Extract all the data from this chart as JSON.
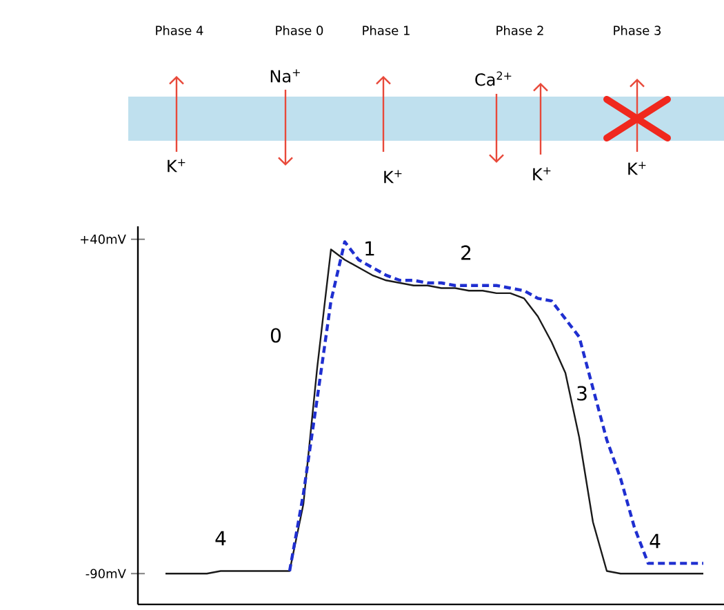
{
  "chart_data": {
    "type": "line",
    "categories": [
      null,
      null,
      null,
      null,
      null,
      null,
      null,
      null,
      null,
      null,
      null,
      null,
      null,
      null,
      null,
      null,
      null,
      null,
      null,
      null,
      null,
      null,
      null,
      null,
      null,
      null,
      null,
      null,
      null,
      null,
      null,
      null,
      null,
      null,
      null,
      null,
      null,
      null,
      null,
      null
    ],
    "series": [
      {
        "color": "#1a1a1a",
        "line_style": "solid",
        "values": [
          -90,
          -90,
          -90,
          -90,
          -89,
          -89,
          -89,
          -89,
          -89,
          -89,
          -63,
          -10,
          36,
          32,
          29,
          26,
          24,
          23,
          22,
          22,
          21,
          21,
          20,
          20,
          19,
          19,
          17,
          10,
          0,
          -12,
          -37,
          -70,
          -89,
          -90,
          -90,
          -90,
          -90,
          -90,
          -90,
          -90
        ]
      },
      {
        "color": "#1f2fd0",
        "line_style": "dashed",
        "values": [
          null,
          null,
          null,
          null,
          null,
          null,
          null,
          null,
          null,
          -89,
          -59,
          -22,
          16,
          39,
          32,
          29,
          26,
          24,
          24,
          23,
          23,
          22,
          22,
          22,
          22,
          21,
          20,
          17,
          16,
          9,
          2,
          -18,
          -38,
          -53,
          -72,
          -86,
          -86,
          -86,
          -86,
          -86
        ]
      }
    ],
    "ylim": [
      -102,
      45
    ],
    "yticks": [
      {
        "value": 40,
        "label": "+40mV"
      },
      {
        "value": -90,
        "label": "-90mV"
      }
    ],
    "tick_labels": "y",
    "marker": "none",
    "annotations": [
      "Phase 4",
      "Phase 0",
      "Phase 1",
      "Phase 2",
      "Phase 3",
      "Na$^{+}$",
      "K$^{+}$",
      "K$^{+}$",
      "Ca$^{2+}$",
      "K$^{+}$",
      "K$^{+}$",
      "4",
      "0",
      "1",
      "2",
      "3",
      "4"
    ]
  }
}
